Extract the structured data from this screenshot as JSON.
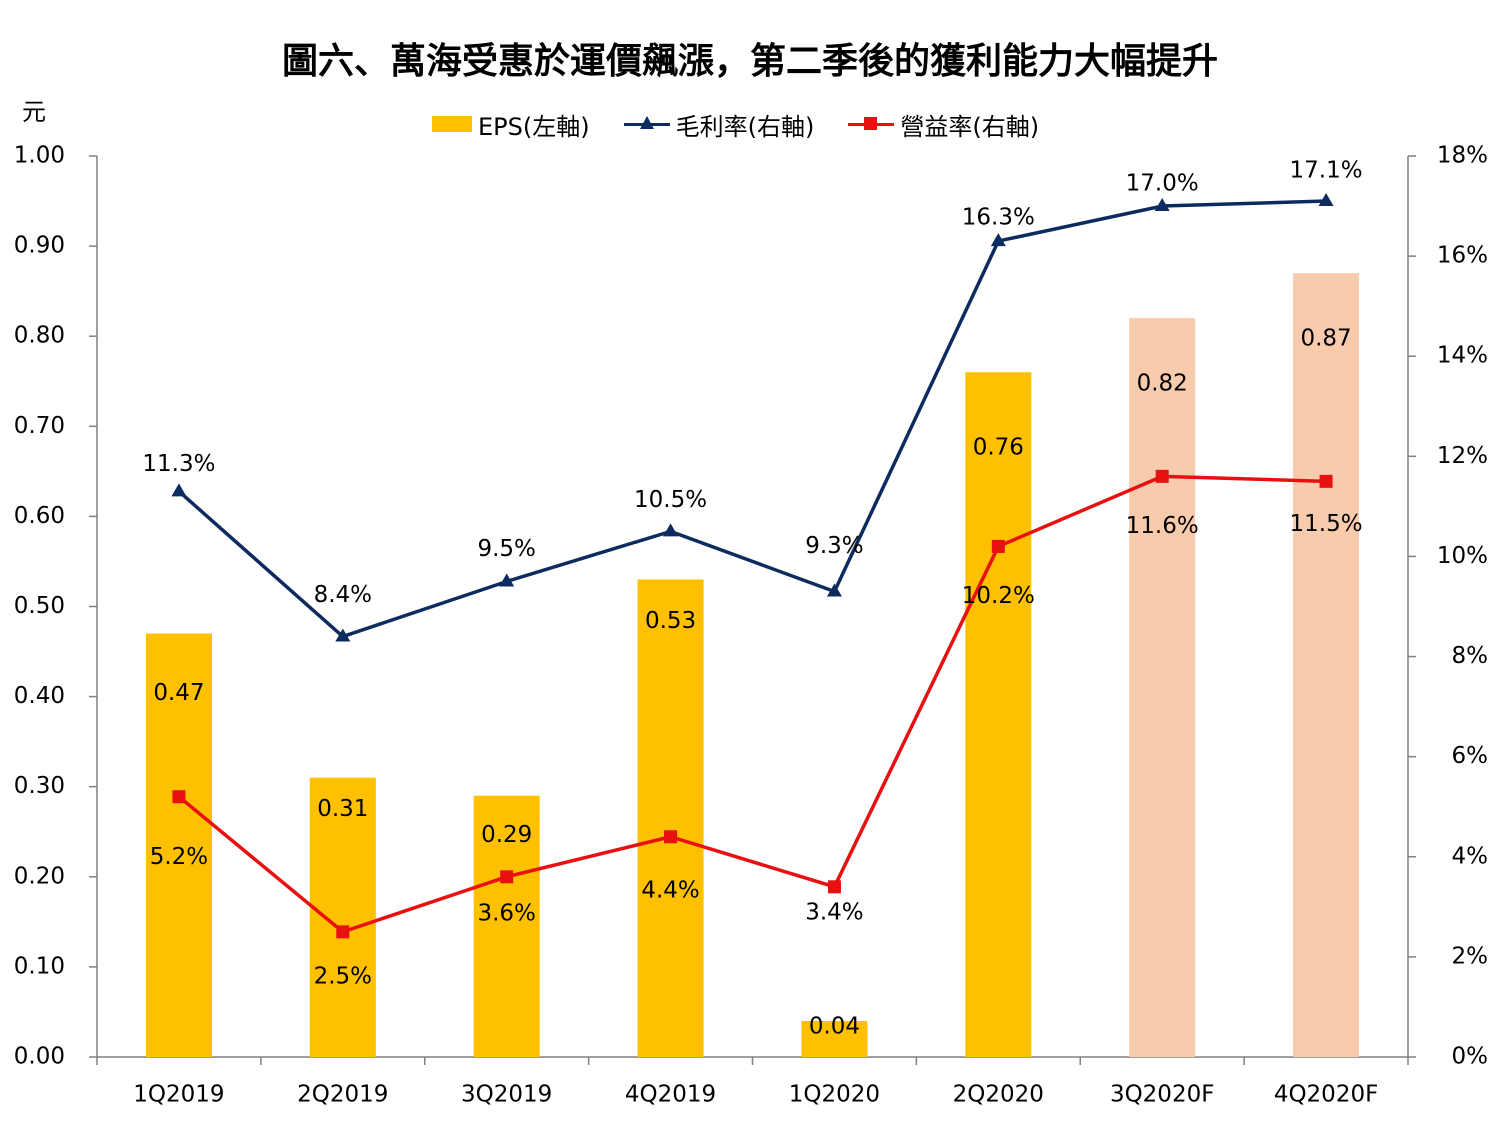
{
  "title": "圖六、萬海受惠於運價飆漲，第二季後的獲利能力大幅提升",
  "unit_label": "元",
  "legend": {
    "eps": "EPS(左軸)",
    "gross": "毛利率(右軸)",
    "op": "營益率(右軸)"
  },
  "colors": {
    "eps": "#FFC000",
    "eps_forecast": "#F8CBAD",
    "gross": "#0D2B5E",
    "op": "#E81010",
    "axis": "#808080"
  },
  "chart_data": {
    "type": "bar",
    "categories": [
      "1Q2019",
      "2Q2019",
      "3Q2019",
      "4Q2019",
      "1Q2020",
      "2Q2020",
      "3Q2020F",
      "4Q2020F"
    ],
    "forecast": [
      false,
      false,
      false,
      false,
      false,
      false,
      true,
      true
    ],
    "series": [
      {
        "name": "EPS(左軸)",
        "type": "bar",
        "axis": "left",
        "values": [
          0.47,
          0.31,
          0.29,
          0.53,
          0.04,
          0.76,
          0.82,
          0.87
        ],
        "labels": [
          "0.47",
          "0.31",
          "0.29",
          "0.53",
          "0.04",
          "0.76",
          "0.82",
          "0.87"
        ]
      },
      {
        "name": "毛利率(右軸)",
        "type": "line",
        "axis": "right",
        "marker": "triangle",
        "values": [
          11.3,
          8.4,
          9.5,
          10.5,
          9.3,
          16.3,
          17.0,
          17.1
        ],
        "labels": [
          "11.3%",
          "8.4%",
          "9.5%",
          "10.5%",
          "9.3%",
          "16.3%",
          "17.0%",
          "17.1%"
        ]
      },
      {
        "name": "營益率(右軸)",
        "type": "line",
        "axis": "right",
        "marker": "square",
        "values": [
          5.2,
          2.5,
          3.6,
          4.4,
          3.4,
          10.2,
          11.6,
          11.5
        ],
        "labels": [
          "5.2%",
          "2.5%",
          "3.6%",
          "4.4%",
          "3.4%",
          "10.2%",
          "11.6%",
          "11.5%"
        ]
      }
    ],
    "left_axis": {
      "ylim": [
        0,
        1.0
      ],
      "ticks": [
        "0.00",
        "0.10",
        "0.20",
        "0.30",
        "0.40",
        "0.50",
        "0.60",
        "0.70",
        "0.80",
        "0.90",
        "1.00"
      ]
    },
    "right_axis": {
      "ylim": [
        0,
        18
      ],
      "ticks": [
        "0%",
        "2%",
        "4%",
        "6%",
        "8%",
        "10%",
        "12%",
        "14%",
        "16%",
        "18%"
      ]
    },
    "grid": false,
    "legend_position": "top"
  }
}
